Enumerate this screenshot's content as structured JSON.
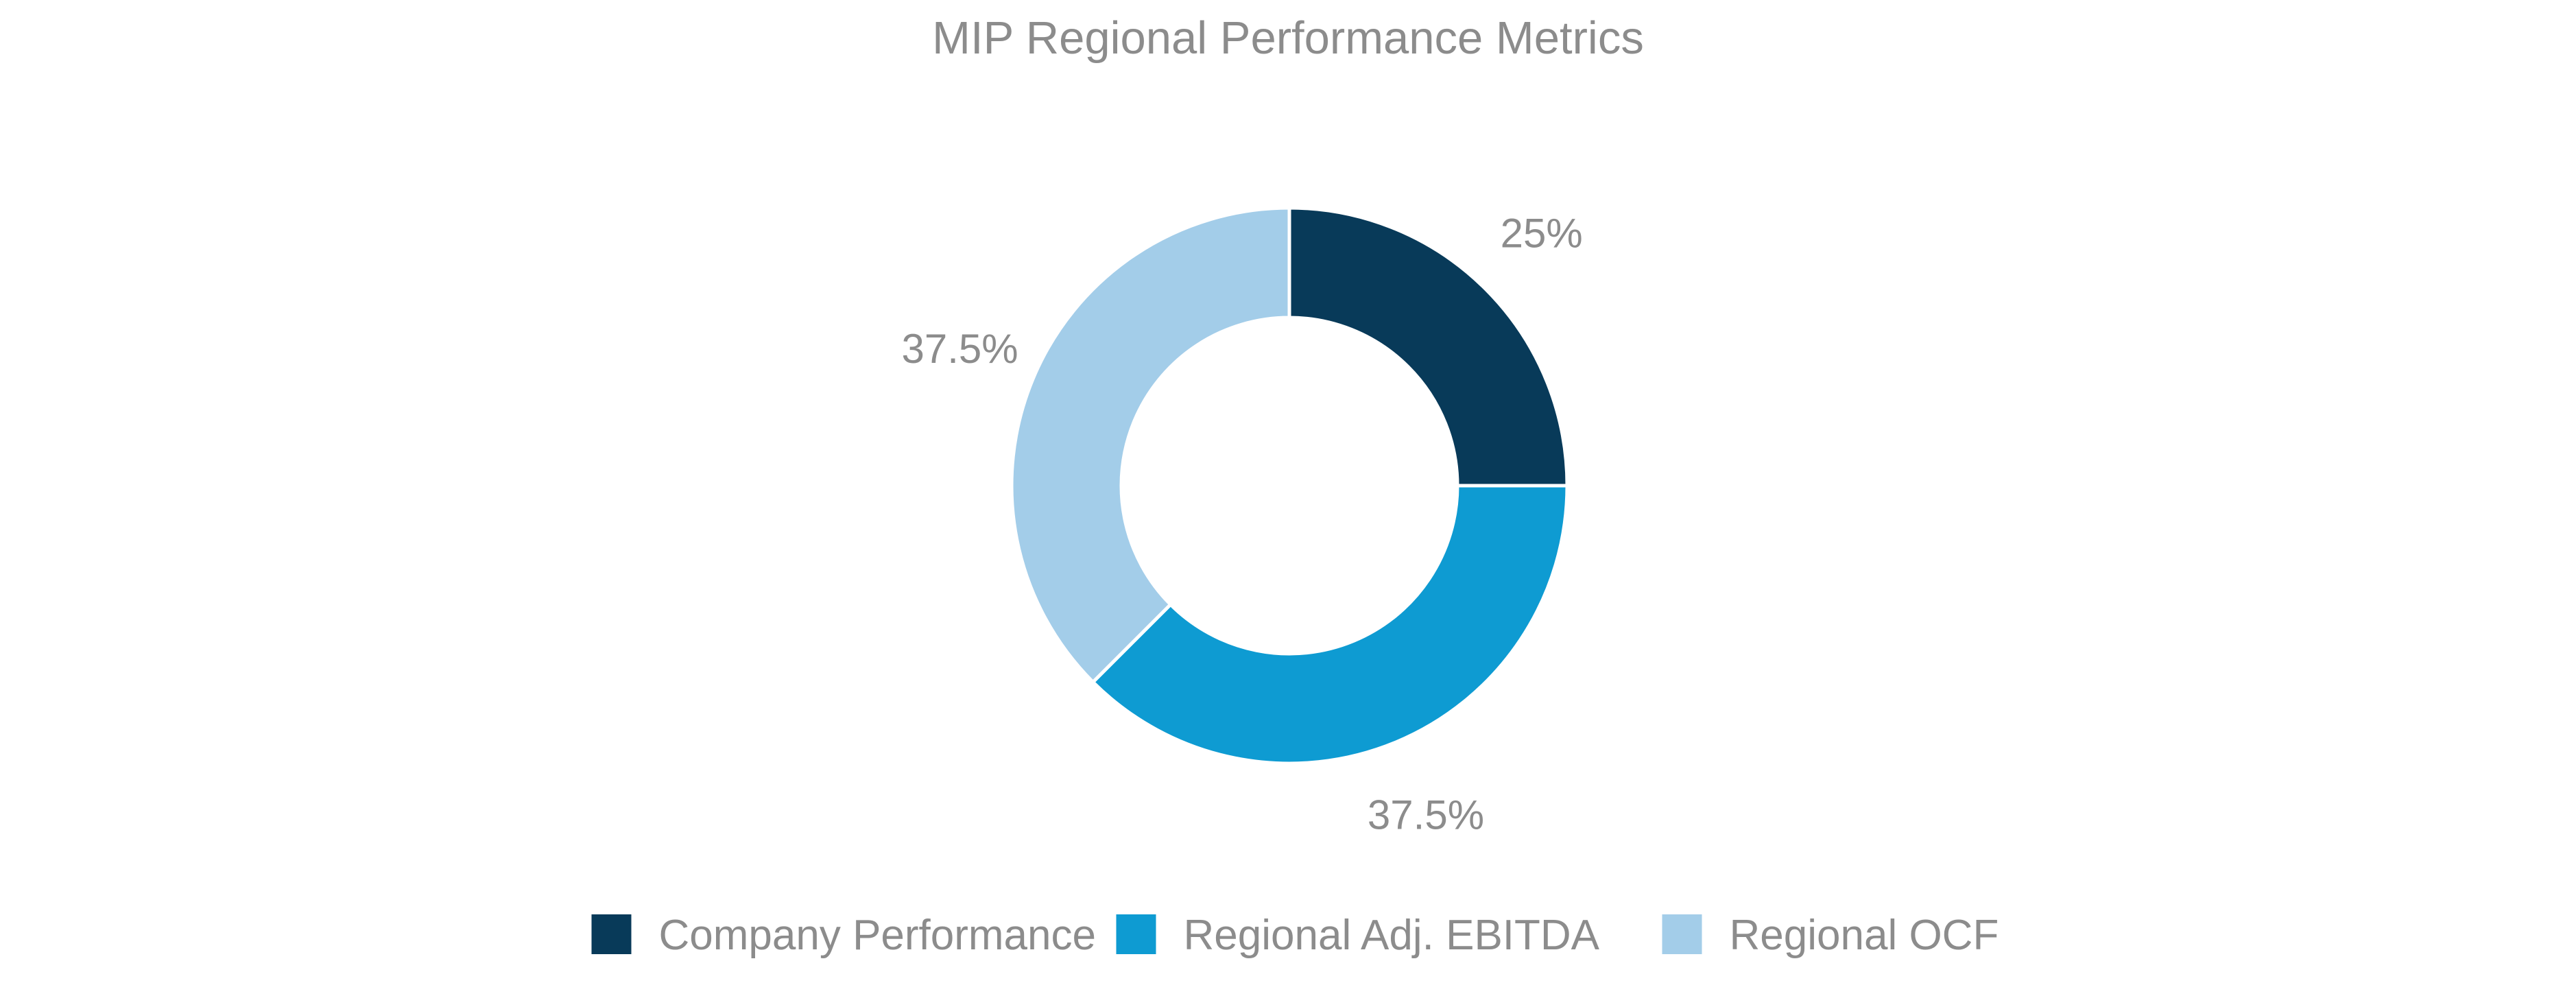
{
  "chart_data": {
    "type": "pie",
    "donut": true,
    "title": "MIP Regional Performance Metrics",
    "categories": [
      "Company Performance",
      "Regional Adj. EBITDA",
      "Regional OCF"
    ],
    "values": [
      25,
      37.5,
      37.5
    ],
    "labels": [
      "25%",
      "37.5%",
      "37.5%"
    ],
    "colors": [
      "#083a59",
      "#0e9bd2",
      "#a3cde9"
    ],
    "start_angle_deg": 0,
    "direction": "clockwise",
    "legend_position": "bottom"
  }
}
